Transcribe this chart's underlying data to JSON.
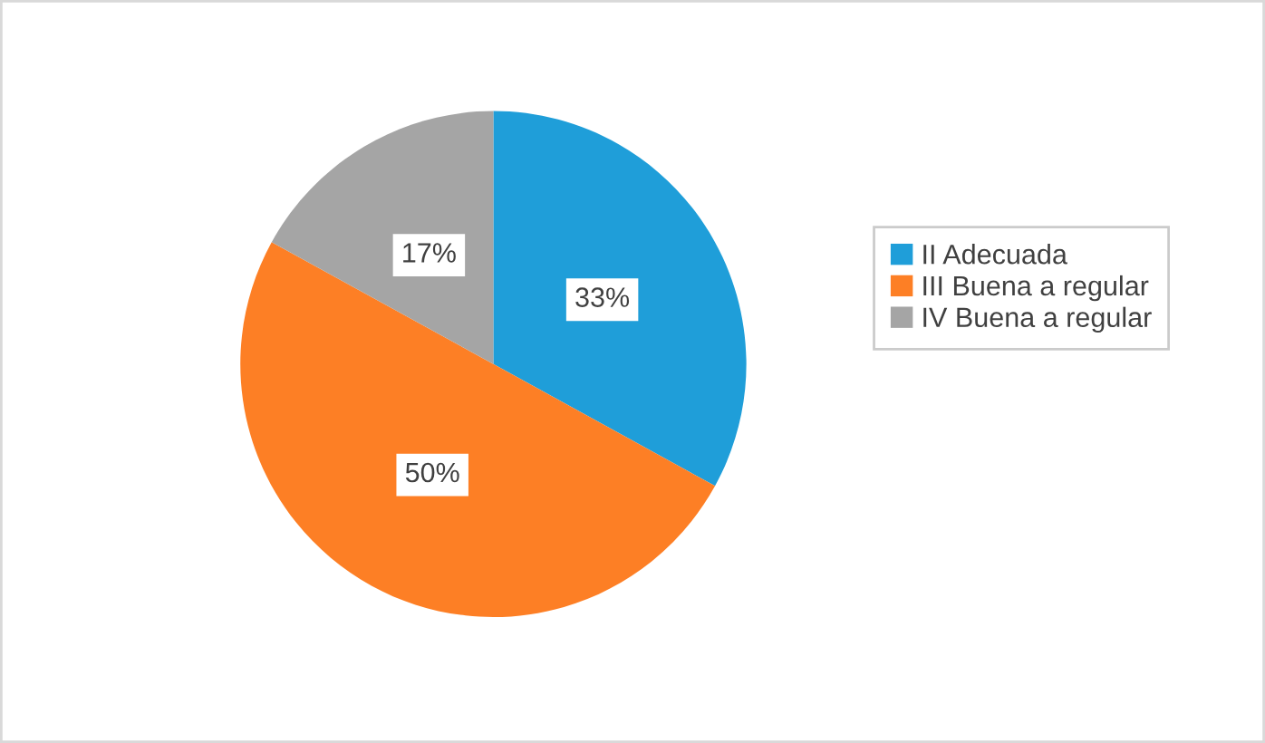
{
  "chart_data": {
    "type": "pie",
    "categories": [
      "II Adecuada",
      "III Buena a regular",
      "IV Buena a regular"
    ],
    "values": [
      33,
      50,
      17
    ],
    "colors": [
      "#1f9ed9",
      "#fd7f25",
      "#a5a5a5"
    ],
    "value_labels": [
      "33%",
      "50%",
      "17%"
    ],
    "legend": "right"
  }
}
